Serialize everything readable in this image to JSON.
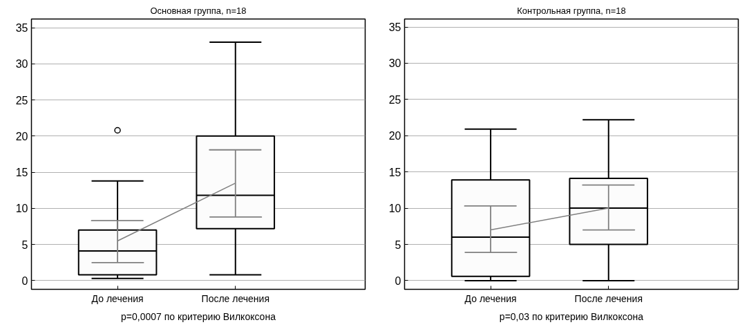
{
  "chart_data": [
    {
      "type": "box",
      "title": "Основная группа, n=18",
      "categories": [
        "До лечения",
        "После лечения"
      ],
      "ylim": [
        -1.2,
        36.2
      ],
      "yticks": [
        0,
        5,
        10,
        15,
        20,
        25,
        30,
        35
      ],
      "grid": "y",
      "annotations": [
        "p=0,0007 по критерию Вилкоксона"
      ],
      "series": [
        {
          "type": "box",
          "color": "#000000",
          "boxes": [
            {
              "low": 0.3,
              "q1": 0.8,
              "median": 4.1,
              "q3": 7.0,
              "high": 13.8,
              "outliers": [
                20.8
              ]
            },
            {
              "low": 0.8,
              "q1": 7.2,
              "median": 11.8,
              "q3": 20.0,
              "high": 33.0
            }
          ]
        },
        {
          "type": "line",
          "color": "#808080",
          "values": [
            5.5,
            13.5
          ],
          "errors": [
            [
              2.5,
              8.3
            ],
            [
              8.8,
              18.1
            ]
          ]
        }
      ]
    },
    {
      "type": "box",
      "title": "Контрольная группа, n=18",
      "categories": [
        "До лечения",
        "После лечения"
      ],
      "ylim": [
        -1.2,
        36.1
      ],
      "yticks": [
        0,
        5,
        10,
        15,
        20,
        25,
        30,
        35
      ],
      "grid": "y",
      "annotations": [
        "p=0,03 по критерию Вилкоксона"
      ],
      "series": [
        {
          "type": "box",
          "color": "#000000",
          "boxes": [
            {
              "low": 0.0,
              "q1": 0.6,
              "median": 6.0,
              "q3": 13.9,
              "high": 20.9
            },
            {
              "low": 0.0,
              "q1": 5.0,
              "median": 10.0,
              "q3": 14.1,
              "high": 22.2
            }
          ]
        },
        {
          "type": "line",
          "color": "#808080",
          "values": [
            7.0,
            10.0
          ],
          "errors": [
            [
              3.9,
              10.3
            ],
            [
              7.0,
              13.2
            ]
          ]
        }
      ]
    }
  ]
}
